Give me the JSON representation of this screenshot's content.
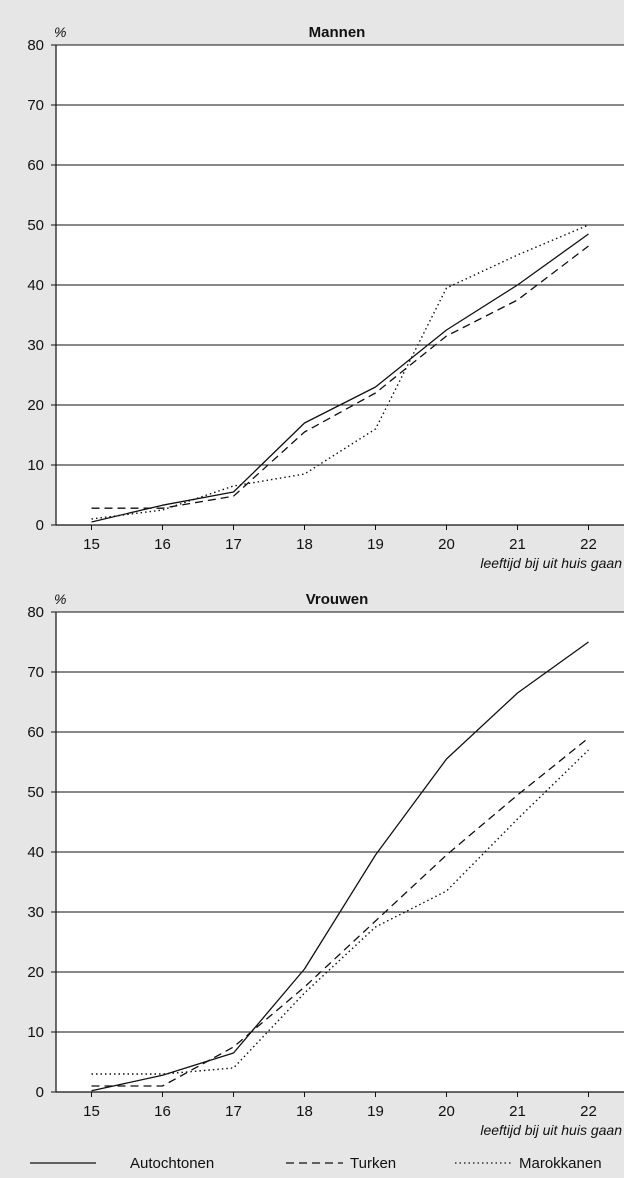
{
  "chart_data": [
    {
      "type": "line",
      "title": "Mannen",
      "ylabel": "%",
      "xlabel": "leeftijd bij uit huis gaan",
      "x": [
        15,
        16,
        17,
        18,
        19,
        20,
        21,
        22
      ],
      "ylim": [
        0,
        80
      ],
      "yticks": [
        0,
        10,
        20,
        30,
        40,
        50,
        60,
        70,
        80
      ],
      "grid": true,
      "series": [
        {
          "name": "Autochtonen",
          "style": "solid",
          "values": [
            0.5,
            3.3,
            5.5,
            17.0,
            23.0,
            32.5,
            40.0,
            48.5
          ]
        },
        {
          "name": "Turken",
          "style": "dashed",
          "values": [
            2.8,
            2.8,
            4.8,
            15.5,
            22.0,
            31.5,
            37.5,
            46.5
          ]
        },
        {
          "name": "Marokkanen",
          "style": "dotted",
          "values": [
            1.0,
            2.5,
            6.5,
            8.5,
            16.0,
            39.5,
            45.0,
            50.0
          ]
        }
      ]
    },
    {
      "type": "line",
      "title": "Vrouwen",
      "ylabel": "%",
      "xlabel": "leeftijd bij uit huis gaan",
      "x": [
        15,
        16,
        17,
        18,
        19,
        20,
        21,
        22
      ],
      "ylim": [
        0,
        80
      ],
      "yticks": [
        0,
        10,
        20,
        30,
        40,
        50,
        60,
        70,
        80
      ],
      "grid": true,
      "series": [
        {
          "name": "Autochtonen",
          "style": "solid",
          "values": [
            0.2,
            2.8,
            6.5,
            20.5,
            39.5,
            55.5,
            66.5,
            75.0
          ]
        },
        {
          "name": "Turken",
          "style": "dashed",
          "values": [
            1.0,
            1.0,
            7.5,
            17.5,
            28.5,
            39.5,
            49.5,
            59.0
          ]
        },
        {
          "name": "Marokkanen",
          "style": "dotted",
          "values": [
            3.0,
            3.0,
            4.0,
            16.5,
            27.5,
            33.5,
            45.5,
            57.0
          ]
        }
      ]
    }
  ],
  "legend": [
    {
      "label": "Autochtonen",
      "style": "solid"
    },
    {
      "label": "Turken",
      "style": "dashed"
    },
    {
      "label": "Marokkanen",
      "style": "dotted"
    }
  ],
  "colors": {
    "background": "#e6e6e6",
    "plot_background": "#ffffff",
    "ink": "#111111"
  }
}
